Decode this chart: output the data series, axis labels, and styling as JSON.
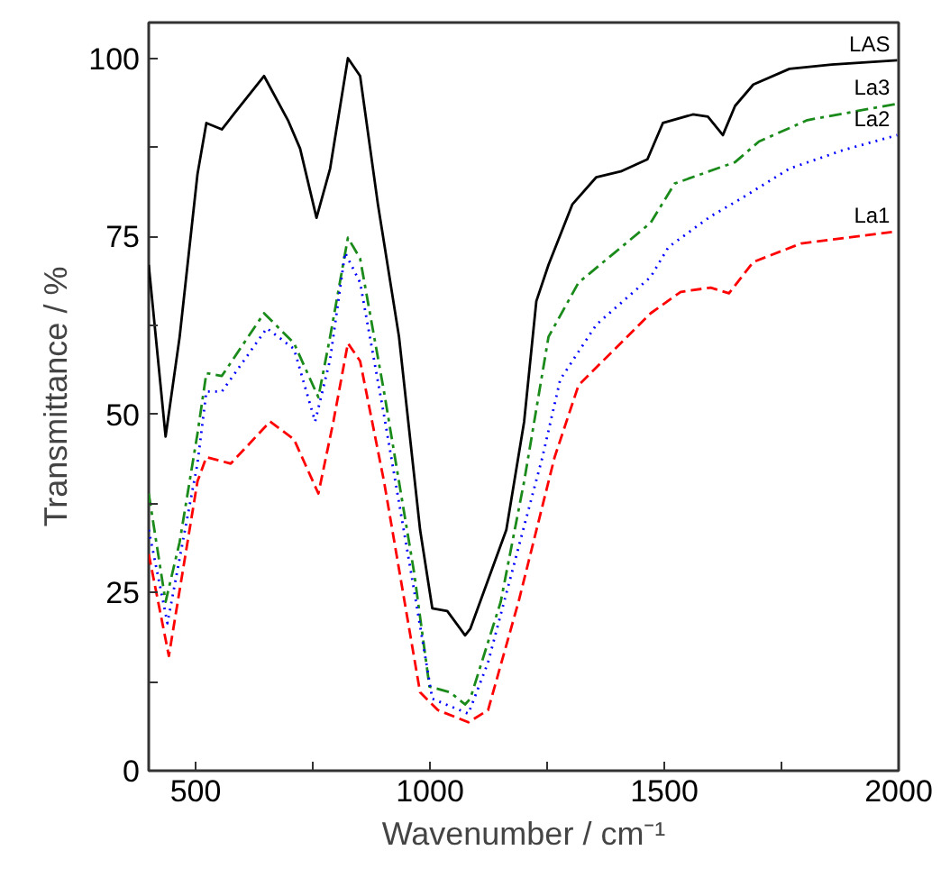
{
  "chart_data": {
    "type": "line",
    "xlabel": "Wavenumber / cm⁻¹",
    "ylabel": "Transmittance / %",
    "xlim": [
      400,
      2000
    ],
    "ylim": [
      0,
      105
    ],
    "xticks": [
      500,
      1000,
      1500,
      2000,
      {
        "value": 750,
        "label": null
      },
      {
        "value": 1250,
        "label": null
      },
      {
        "value": 1750,
        "label": null
      }
    ],
    "yticks": [
      0,
      25,
      50,
      75,
      100,
      {
        "value": 12.5,
        "label": null
      },
      {
        "value": 37.5,
        "label": null
      },
      {
        "value": 62.5,
        "label": null
      },
      {
        "value": 87.5,
        "label": null
      }
    ],
    "grid": false,
    "legend": false,
    "marker": "none",
    "series": [
      {
        "name": "LAS",
        "color": "#000000",
        "line_style": "solid",
        "x": [
          400,
          436,
          466,
          504,
          523,
          556,
          581,
          646,
          697,
          723,
          758,
          787,
          825,
          851,
          889,
          934,
          979,
          1005,
          1037,
          1075,
          1086,
          1163,
          1201,
          1227,
          1253,
          1304,
          1355,
          1407,
          1464,
          1497,
          1561,
          1593,
          1625,
          1651,
          1690,
          1767,
          1857,
          1997
        ],
        "values": [
          71.0,
          46.9,
          60.9,
          83.7,
          90.9,
          90.0,
          92.1,
          97.5,
          91.3,
          87.3,
          77.6,
          84.5,
          100,
          97.5,
          79.5,
          60.9,
          33.8,
          22.8,
          22.4,
          19.0,
          19.9,
          33.8,
          49.0,
          65.9,
          71.0,
          79.5,
          83.3,
          84.1,
          85.8,
          90.9,
          92.1,
          91.8,
          89.2,
          93.3,
          96.3,
          98.5,
          99.1,
          99.7
        ]
      },
      {
        "name": "La3",
        "color": "#1a8a1a",
        "line_style": "dashdot",
        "x": [
          400,
          436,
          466,
          504,
          523,
          556,
          646,
          710,
          762,
          787,
          825,
          851,
          902,
          966,
          999,
          1043,
          1075,
          1086,
          1151,
          1201,
          1253,
          1317,
          1394,
          1471,
          1522,
          1612,
          1651,
          1702,
          1805,
          1997
        ],
        "values": [
          38.9,
          23.7,
          32.1,
          47.3,
          55.8,
          55.4,
          64.2,
          60.0,
          52.4,
          60.9,
          74.8,
          71.9,
          53.2,
          27.9,
          11.8,
          11.0,
          9.3,
          10.1,
          23.7,
          40.6,
          60.9,
          68.5,
          72.7,
          76.9,
          82.4,
          84.5,
          85.4,
          88.3,
          91.3,
          93.6
        ]
      },
      {
        "name": "La2",
        "color": "#0000ff",
        "line_style": "dotted",
        "x": [
          400,
          440,
          504,
          523,
          556,
          652,
          710,
          755,
          787,
          819,
          851,
          902,
          966,
          1005,
          1082,
          1124,
          1240,
          1278,
          1355,
          1471,
          1509,
          1599,
          1664,
          1767,
          1882,
          1997
        ],
        "values": [
          33.8,
          20.7,
          43.1,
          53.2,
          53.2,
          62.1,
          59.2,
          49.0,
          57.7,
          72.7,
          68.5,
          49.9,
          25.4,
          10.1,
          8.0,
          15.2,
          44.0,
          54.9,
          62.6,
          69.3,
          73.5,
          77.8,
          80.3,
          84.5,
          87.1,
          89.2
        ]
      },
      {
        "name": "La1",
        "color": "#ff0000",
        "line_style": "dashed",
        "x": [
          400,
          443,
          504,
          523,
          575,
          659,
          710,
          762,
          794,
          825,
          851,
          902,
          979,
          1017,
          1082,
          1124,
          1189,
          1266,
          1317,
          1407,
          1471,
          1535,
          1599,
          1638,
          1690,
          1792,
          1997
        ],
        "values": [
          30.4,
          16.1,
          40.6,
          44.0,
          43.1,
          49.0,
          46.5,
          38.9,
          49.0,
          60.0,
          57.5,
          40.6,
          11.0,
          8.5,
          6.8,
          8.5,
          23.7,
          44.0,
          54.1,
          60.0,
          64.2,
          67.2,
          67.8,
          67.0,
          71.4,
          74.0,
          75.7
        ]
      }
    ]
  }
}
